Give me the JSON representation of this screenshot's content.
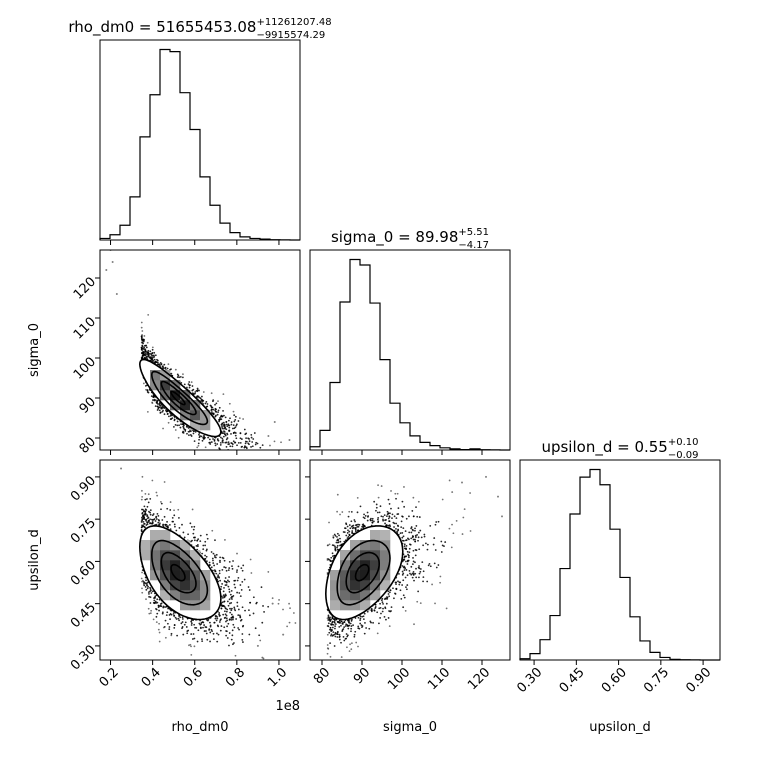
{
  "chart_data": {
    "type": "corner",
    "colors": {
      "line": "#000000",
      "background": "#ffffff"
    },
    "parameters": [
      {
        "name": "rho_dm0",
        "axis_label": "rho_dm0",
        "title": {
          "main": "rho_dm0 = 51655453.08",
          "plus": "+11261207.48",
          "minus": "−9915574.29"
        },
        "range": [
          0.15,
          1.1
        ],
        "ticks": [
          0.2,
          0.4,
          0.6,
          0.8,
          1.0
        ],
        "tick_labels": [
          "0.2",
          "0.4",
          "0.6",
          "0.8",
          "1.0"
        ],
        "offset_label": "1e8",
        "median": 0.5166,
        "hist_edges": [
          0.15,
          0.1975,
          0.245,
          0.2925,
          0.34,
          0.3875,
          0.435,
          0.4825,
          0.53,
          0.5775,
          0.625,
          0.6725,
          0.72,
          0.7675,
          0.815,
          0.8625,
          0.91,
          0.9575,
          1.005,
          1.0525,
          1.1
        ],
        "hist_counts": [
          1.5,
          5,
          14,
          41,
          98,
          138,
          181,
          179,
          140,
          105,
          60,
          33,
          16,
          7,
          3,
          1.5,
          0.8,
          0.3,
          0.1,
          0
        ]
      },
      {
        "name": "sigma_0",
        "axis_label": "sigma_0",
        "title": {
          "main": "sigma_0 = 89.98",
          "plus": "+5.51",
          "minus": "−4.17"
        },
        "range": [
          77,
          127
        ],
        "ticks": [
          80,
          90,
          100,
          110,
          120
        ],
        "tick_labels": [
          "80",
          "90",
          "100",
          "110",
          "120"
        ],
        "median": 89.98,
        "hist_edges": [
          77,
          79.5,
          82,
          84.5,
          87,
          89.5,
          92,
          94.5,
          97,
          99.5,
          102,
          104.5,
          107,
          109.5,
          112,
          114.5,
          117,
          119.5,
          122,
          124.5,
          127
        ],
        "hist_counts": [
          3,
          18,
          62,
          136,
          175,
          170,
          135,
          83,
          43,
          25,
          13,
          7,
          4,
          2,
          1,
          0.4,
          1,
          0.2,
          0.1,
          0
        ]
      },
      {
        "name": "upsilon_d",
        "axis_label": "upsilon_d",
        "title": {
          "main": "upsilon_d = 0.55",
          "plus": "+0.10",
          "minus": "−0.09"
        },
        "range": [
          0.25,
          0.96
        ],
        "ticks": [
          0.3,
          0.45,
          0.6,
          0.75,
          0.9
        ],
        "tick_labels": [
          "0.30",
          "0.45",
          "0.60",
          "0.75",
          "0.90"
        ],
        "median": 0.55,
        "hist_edges": [
          0.25,
          0.2855,
          0.321,
          0.3565,
          0.392,
          0.4275,
          0.463,
          0.4985,
          0.534,
          0.5695,
          0.605,
          0.6405,
          0.676,
          0.7115,
          0.747,
          0.7825,
          0.818,
          0.8535,
          0.889,
          0.9245,
          0.96
        ],
        "hist_counts": [
          1,
          5,
          16,
          35,
          72,
          115,
          144,
          150,
          138,
          103,
          65,
          34,
          15,
          6,
          2,
          0.5,
          0.2,
          0.1,
          0,
          0
        ]
      }
    ],
    "pairs": [
      {
        "x": "rho_dm0",
        "y": "sigma_0",
        "center": [
          0.52,
          90.0
        ],
        "sd": [
          0.11,
          5.5
        ],
        "correlation": -0.88,
        "outliers": [
          [
            0.18,
            122
          ],
          [
            0.2,
            127
          ],
          [
            0.21,
            124
          ],
          [
            0.23,
            116
          ],
          [
            0.95,
            80.5
          ],
          [
            1.05,
            79.5
          ],
          [
            0.98,
            84
          ]
        ]
      },
      {
        "x": "rho_dm0",
        "y": "upsilon_d",
        "center": [
          0.52,
          0.56
        ],
        "sd": [
          0.11,
          0.095
        ],
        "correlation": -0.55,
        "outliers": [
          [
            0.25,
            0.93
          ],
          [
            1.02,
            0.34
          ],
          [
            0.97,
            0.45
          ],
          [
            0.9,
            0.3
          ]
        ]
      },
      {
        "x": "sigma_0",
        "y": "upsilon_d",
        "center": [
          90.0,
          0.56
        ],
        "sd": [
          5.5,
          0.095
        ],
        "correlation": 0.45,
        "outliers": [
          [
            125,
            0.76
          ],
          [
            121,
            0.9
          ],
          [
            124,
            0.83
          ],
          [
            115,
            0.88
          ]
        ]
      }
    ],
    "density_levels": [
      0.39,
      0.86,
      0.99
    ]
  }
}
